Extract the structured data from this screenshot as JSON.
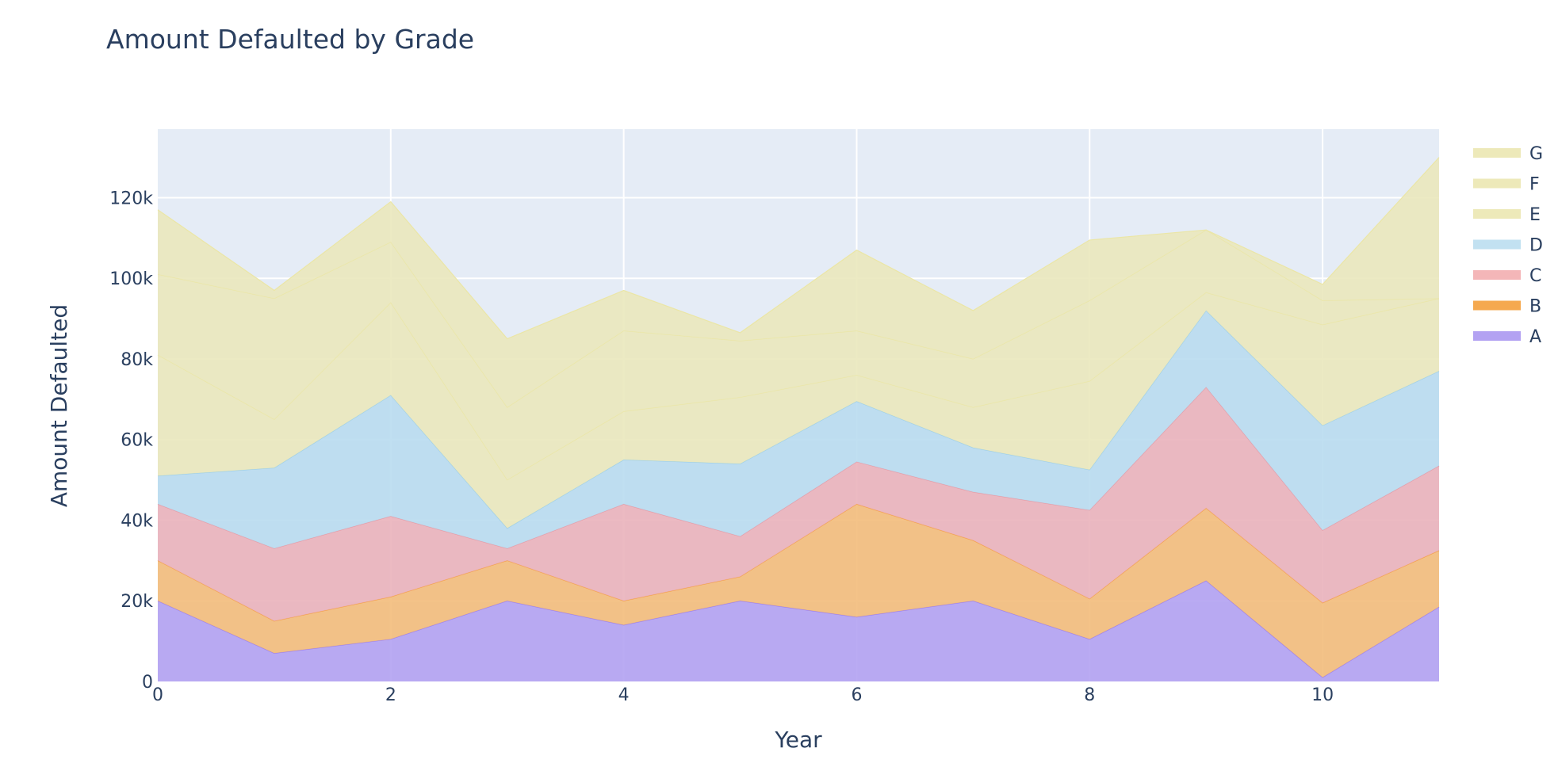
{
  "chart_data": {
    "type": "area",
    "stacked": true,
    "title": "Amount Defaulted by Grade",
    "xlabel": "Year",
    "ylabel": "Amount Defaulted",
    "x": [
      0,
      1,
      2,
      3,
      4,
      5,
      6,
      7,
      8,
      9,
      10,
      11
    ],
    "xlim": [
      0,
      11
    ],
    "ylim": [
      0,
      137000
    ],
    "x_ticks": [
      0,
      2,
      4,
      6,
      8,
      10
    ],
    "y_ticks": [
      0,
      20000,
      40000,
      60000,
      80000,
      100000,
      120000
    ],
    "y_tick_labels": [
      "0",
      "20k",
      "40k",
      "60k",
      "80k",
      "100k",
      "120k"
    ],
    "grid": true,
    "legend_position": "top-right",
    "legend_order": [
      "G",
      "F",
      "E",
      "D",
      "C",
      "B",
      "A"
    ],
    "series": [
      {
        "name": "A",
        "color": "#b3a2f2",
        "line": "#9b7ff0",
        "values": [
          20000,
          7000,
          10500,
          20000,
          14000,
          20000,
          16000,
          20000,
          10500,
          25000,
          1000,
          18500
        ]
      },
      {
        "name": "B",
        "color": "#f3bc7b",
        "line": "#f5a04a",
        "values": [
          10000,
          8000,
          10500,
          10000,
          6000,
          6000,
          28000,
          15000,
          10000,
          18000,
          18500,
          14000
        ]
      },
      {
        "name": "C",
        "color": "#eab3bb",
        "line": "#e79aa5",
        "values": [
          14000,
          18000,
          20000,
          3000,
          24000,
          10000,
          10500,
          12000,
          22000,
          30000,
          18000,
          21000
        ]
      },
      {
        "name": "D",
        "color": "#b9dcf0",
        "line": "#9dcfe9",
        "values": [
          7000,
          20000,
          30000,
          5000,
          11000,
          18000,
          15000,
          11000,
          10000,
          19000,
          26000,
          23500
        ]
      },
      {
        "name": "E",
        "color": "#eae8bd",
        "line": "#ebe6a6",
        "values": [
          30000,
          12000,
          23000,
          12000,
          12000,
          16500,
          6500,
          10000,
          22000,
          4500,
          25000,
          18000
        ]
      },
      {
        "name": "F",
        "color": "#eae8bd",
        "line": "#ebe6a6",
        "values": [
          20000,
          30000,
          15000,
          18000,
          20000,
          14000,
          11000,
          12000,
          20000,
          15500,
          6000,
          0
        ]
      },
      {
        "name": "G",
        "color": "#eae8bd",
        "line": "#ebe6a6",
        "values": [
          16000,
          2000,
          10000,
          17000,
          10000,
          2000,
          20000,
          12000,
          15000,
          0,
          4000,
          35000
        ]
      }
    ],
    "colors": {
      "plot_background": "#e5ecf6",
      "grid": "#ffffff",
      "text": "#2a3f5f",
      "legend_swatch_A": "#b3a2f2",
      "legend_swatch_B": "#f5a94f",
      "legend_swatch_C": "#f4b6b8",
      "legend_swatch_D": "#c2e1f1",
      "legend_swatch_E": "#ede9b9",
      "legend_swatch_F": "#ede9b9",
      "legend_swatch_G": "#ede9b9"
    }
  }
}
